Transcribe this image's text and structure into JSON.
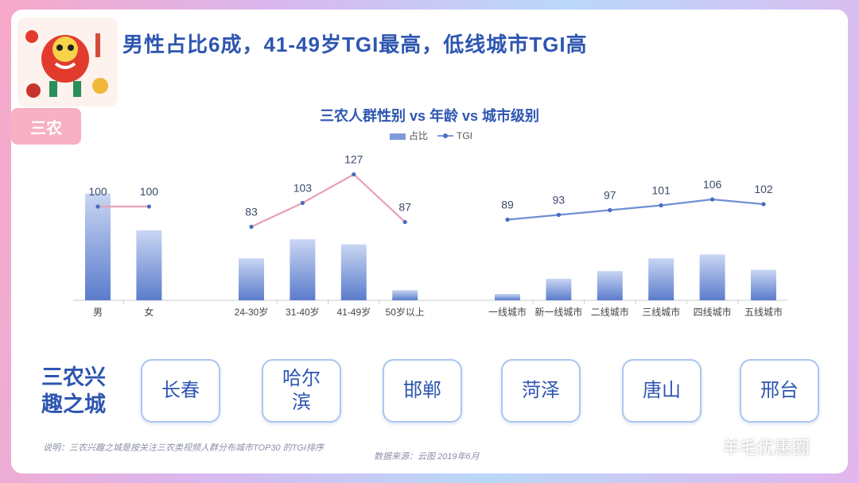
{
  "headline": "男性占比6成，41-49岁TGI最高，低线城市TGI高",
  "tag": "三农",
  "chart_data": {
    "type": "bar",
    "title": "三农人群性别 vs 年龄 vs 城市级别",
    "legend": [
      "占比",
      "TGI"
    ],
    "groups": [
      {
        "categories": [
          "男",
          "女"
        ],
        "share": [
          0.84,
          0.55
        ],
        "tgi": [
          100,
          100
        ]
      },
      {
        "categories": [
          "24-30岁",
          "31-40岁",
          "41-49岁",
          "50岁以上"
        ],
        "share": [
          0.33,
          0.48,
          0.44,
          0.08
        ],
        "tgi": [
          83,
          103,
          127,
          87
        ]
      },
      {
        "categories": [
          "一线城市",
          "新一线城市",
          "二线城市",
          "三线城市",
          "四线城市",
          "五线城市"
        ],
        "share": [
          0.05,
          0.17,
          0.23,
          0.33,
          0.36,
          0.24
        ],
        "tgi": [
          89,
          93,
          97,
          101,
          106,
          102
        ]
      }
    ],
    "group_colors": [
      "#e8a0b4",
      "#e8a0b4",
      "#6f8fd4"
    ]
  },
  "cities_label": "三农兴趣之城",
  "cities": [
    "长春",
    "哈尔滨",
    "邯郸",
    "菏泽",
    "唐山",
    "邢台"
  ],
  "note": "说明：三农兴趣之城是按关注三农类视频人群分布城市TOP30 的TGI排序",
  "source": "数据来源：云图 2019年6月",
  "brand": "羊毛优惠圈",
  "brand_icon": "wechat-icon",
  "mascot_icon": "lion-dance-icon"
}
